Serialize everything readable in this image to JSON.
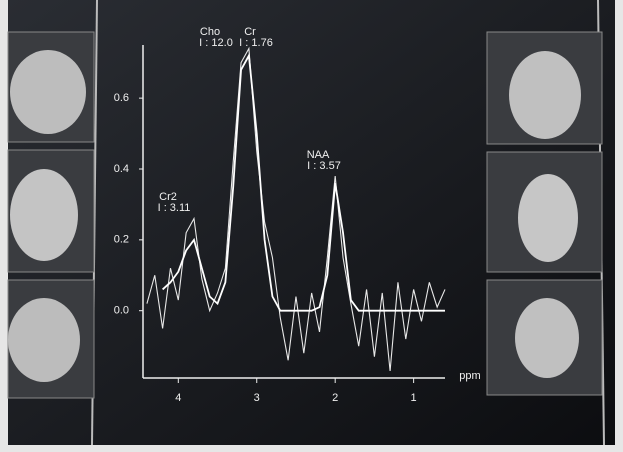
{
  "chart_data": {
    "type": "line",
    "x_label": "ppm",
    "xlim": [
      4.45,
      0.6
    ],
    "xticks": [
      4,
      3,
      2,
      1
    ],
    "ylim": [
      -0.19,
      0.75
    ],
    "yticks": [
      {
        "value": 0,
        "label": "0.0"
      },
      0.2,
      0.4,
      0.6
    ],
    "series": [
      {
        "color": "#e8e8e8",
        "x": [
          4.4,
          4.3,
          4.2,
          4.1,
          4.0,
          3.9,
          3.8,
          3.7,
          3.6,
          3.5,
          3.4,
          3.3,
          3.2,
          3.1,
          3.0,
          2.9,
          2.8,
          2.7,
          2.6,
          2.5,
          2.4,
          2.3,
          2.2,
          2.1,
          2.0,
          1.9,
          1.8,
          1.7,
          1.6,
          1.5,
          1.4,
          1.3,
          1.2,
          1.1,
          1.0,
          0.9,
          0.8,
          0.7,
          0.6
        ],
        "values": [
          0.02,
          0.1,
          -0.05,
          0.12,
          0.03,
          0.22,
          0.26,
          0.09,
          0.0,
          0.05,
          0.12,
          0.42,
          0.7,
          0.74,
          0.45,
          0.25,
          0.15,
          -0.02,
          -0.14,
          0.04,
          -0.12,
          0.05,
          -0.06,
          0.15,
          0.38,
          0.15,
          0.02,
          -0.1,
          0.06,
          -0.13,
          0.05,
          -0.17,
          0.08,
          -0.08,
          0.06,
          -0.03,
          0.08,
          0.01,
          0.06
        ]
      },
      {
        "color": "#ffffff",
        "x": [
          4.2,
          4.1,
          4.0,
          3.9,
          3.8,
          3.7,
          3.6,
          3.5,
          3.4,
          3.3,
          3.2,
          3.1,
          3.0,
          2.9,
          2.8,
          2.7,
          2.6,
          2.5,
          2.4,
          2.3,
          2.2,
          2.1,
          2.0,
          1.9,
          1.8,
          1.7,
          1.6,
          1.5,
          1.4,
          1.3,
          1.2,
          1.1,
          1.0,
          0.9,
          0.8,
          0.7,
          0.6
        ],
        "values": [
          0.06,
          0.08,
          0.11,
          0.17,
          0.2,
          0.12,
          0.04,
          0.02,
          0.08,
          0.35,
          0.68,
          0.72,
          0.5,
          0.2,
          0.04,
          0,
          0,
          0,
          0,
          0,
          0.01,
          0.1,
          0.36,
          0.22,
          0.03,
          0,
          0,
          0,
          0,
          0,
          0,
          0,
          0,
          0,
          0,
          0,
          0
        ]
      }
    ],
    "annotations": [
      {
        "name": "Cho",
        "text": "I : 12.0"
      },
      {
        "name": "Cr",
        "text": "I : 1.76"
      },
      {
        "name": "NAA",
        "text": "I : 3.57"
      },
      {
        "name": "Cr2",
        "text": "I : 3.11"
      }
    ]
  }
}
